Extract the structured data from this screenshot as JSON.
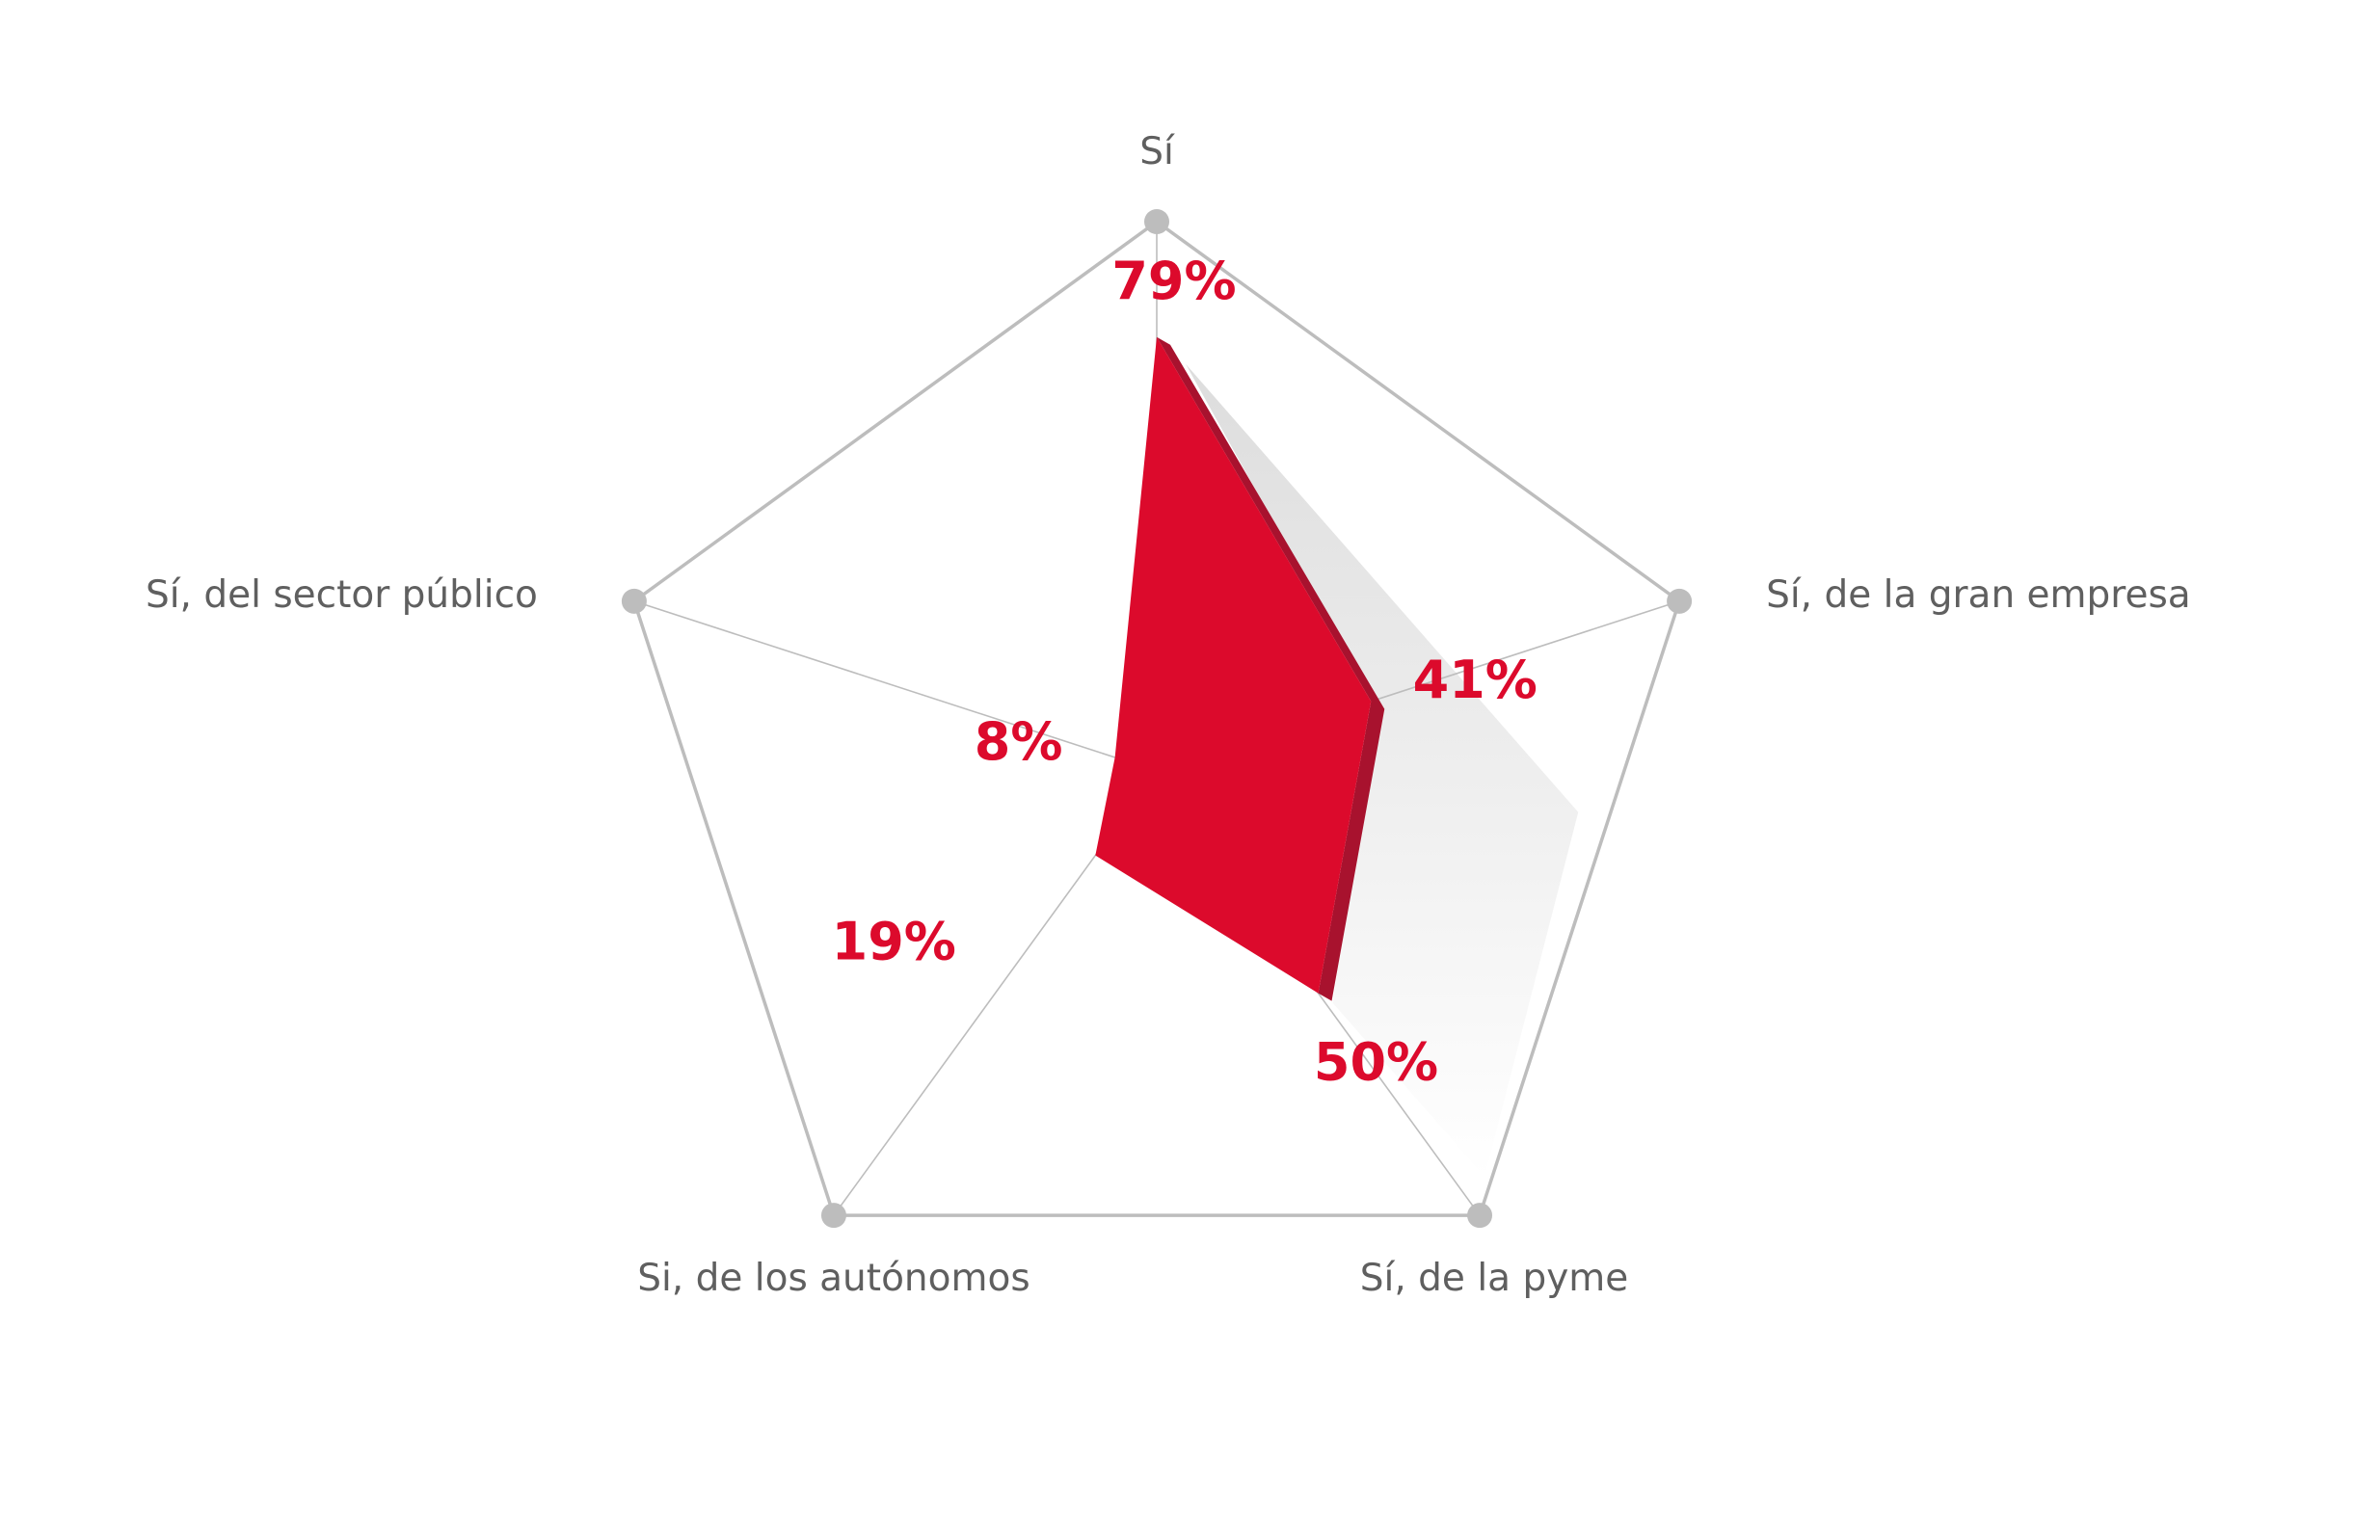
{
  "chart_data": {
    "type": "radar",
    "categories": [
      "Sí",
      "Sí, de la gran empresa",
      "Sí, de la pyme",
      "Si, de los autónomos",
      "Sí, del sector público"
    ],
    "values": [
      79,
      41,
      50,
      19,
      8
    ],
    "value_labels": [
      "79%",
      "41%",
      "50%",
      "19%",
      "8%"
    ],
    "range": [
      0,
      100
    ],
    "colors": {
      "fill": "#dc0a2c",
      "edge": "#a8122e",
      "grid": "#bdbdbd",
      "vertex": "#bdbdbd",
      "shadow": "#e6e6e6",
      "label": "#5f5f5f"
    }
  }
}
